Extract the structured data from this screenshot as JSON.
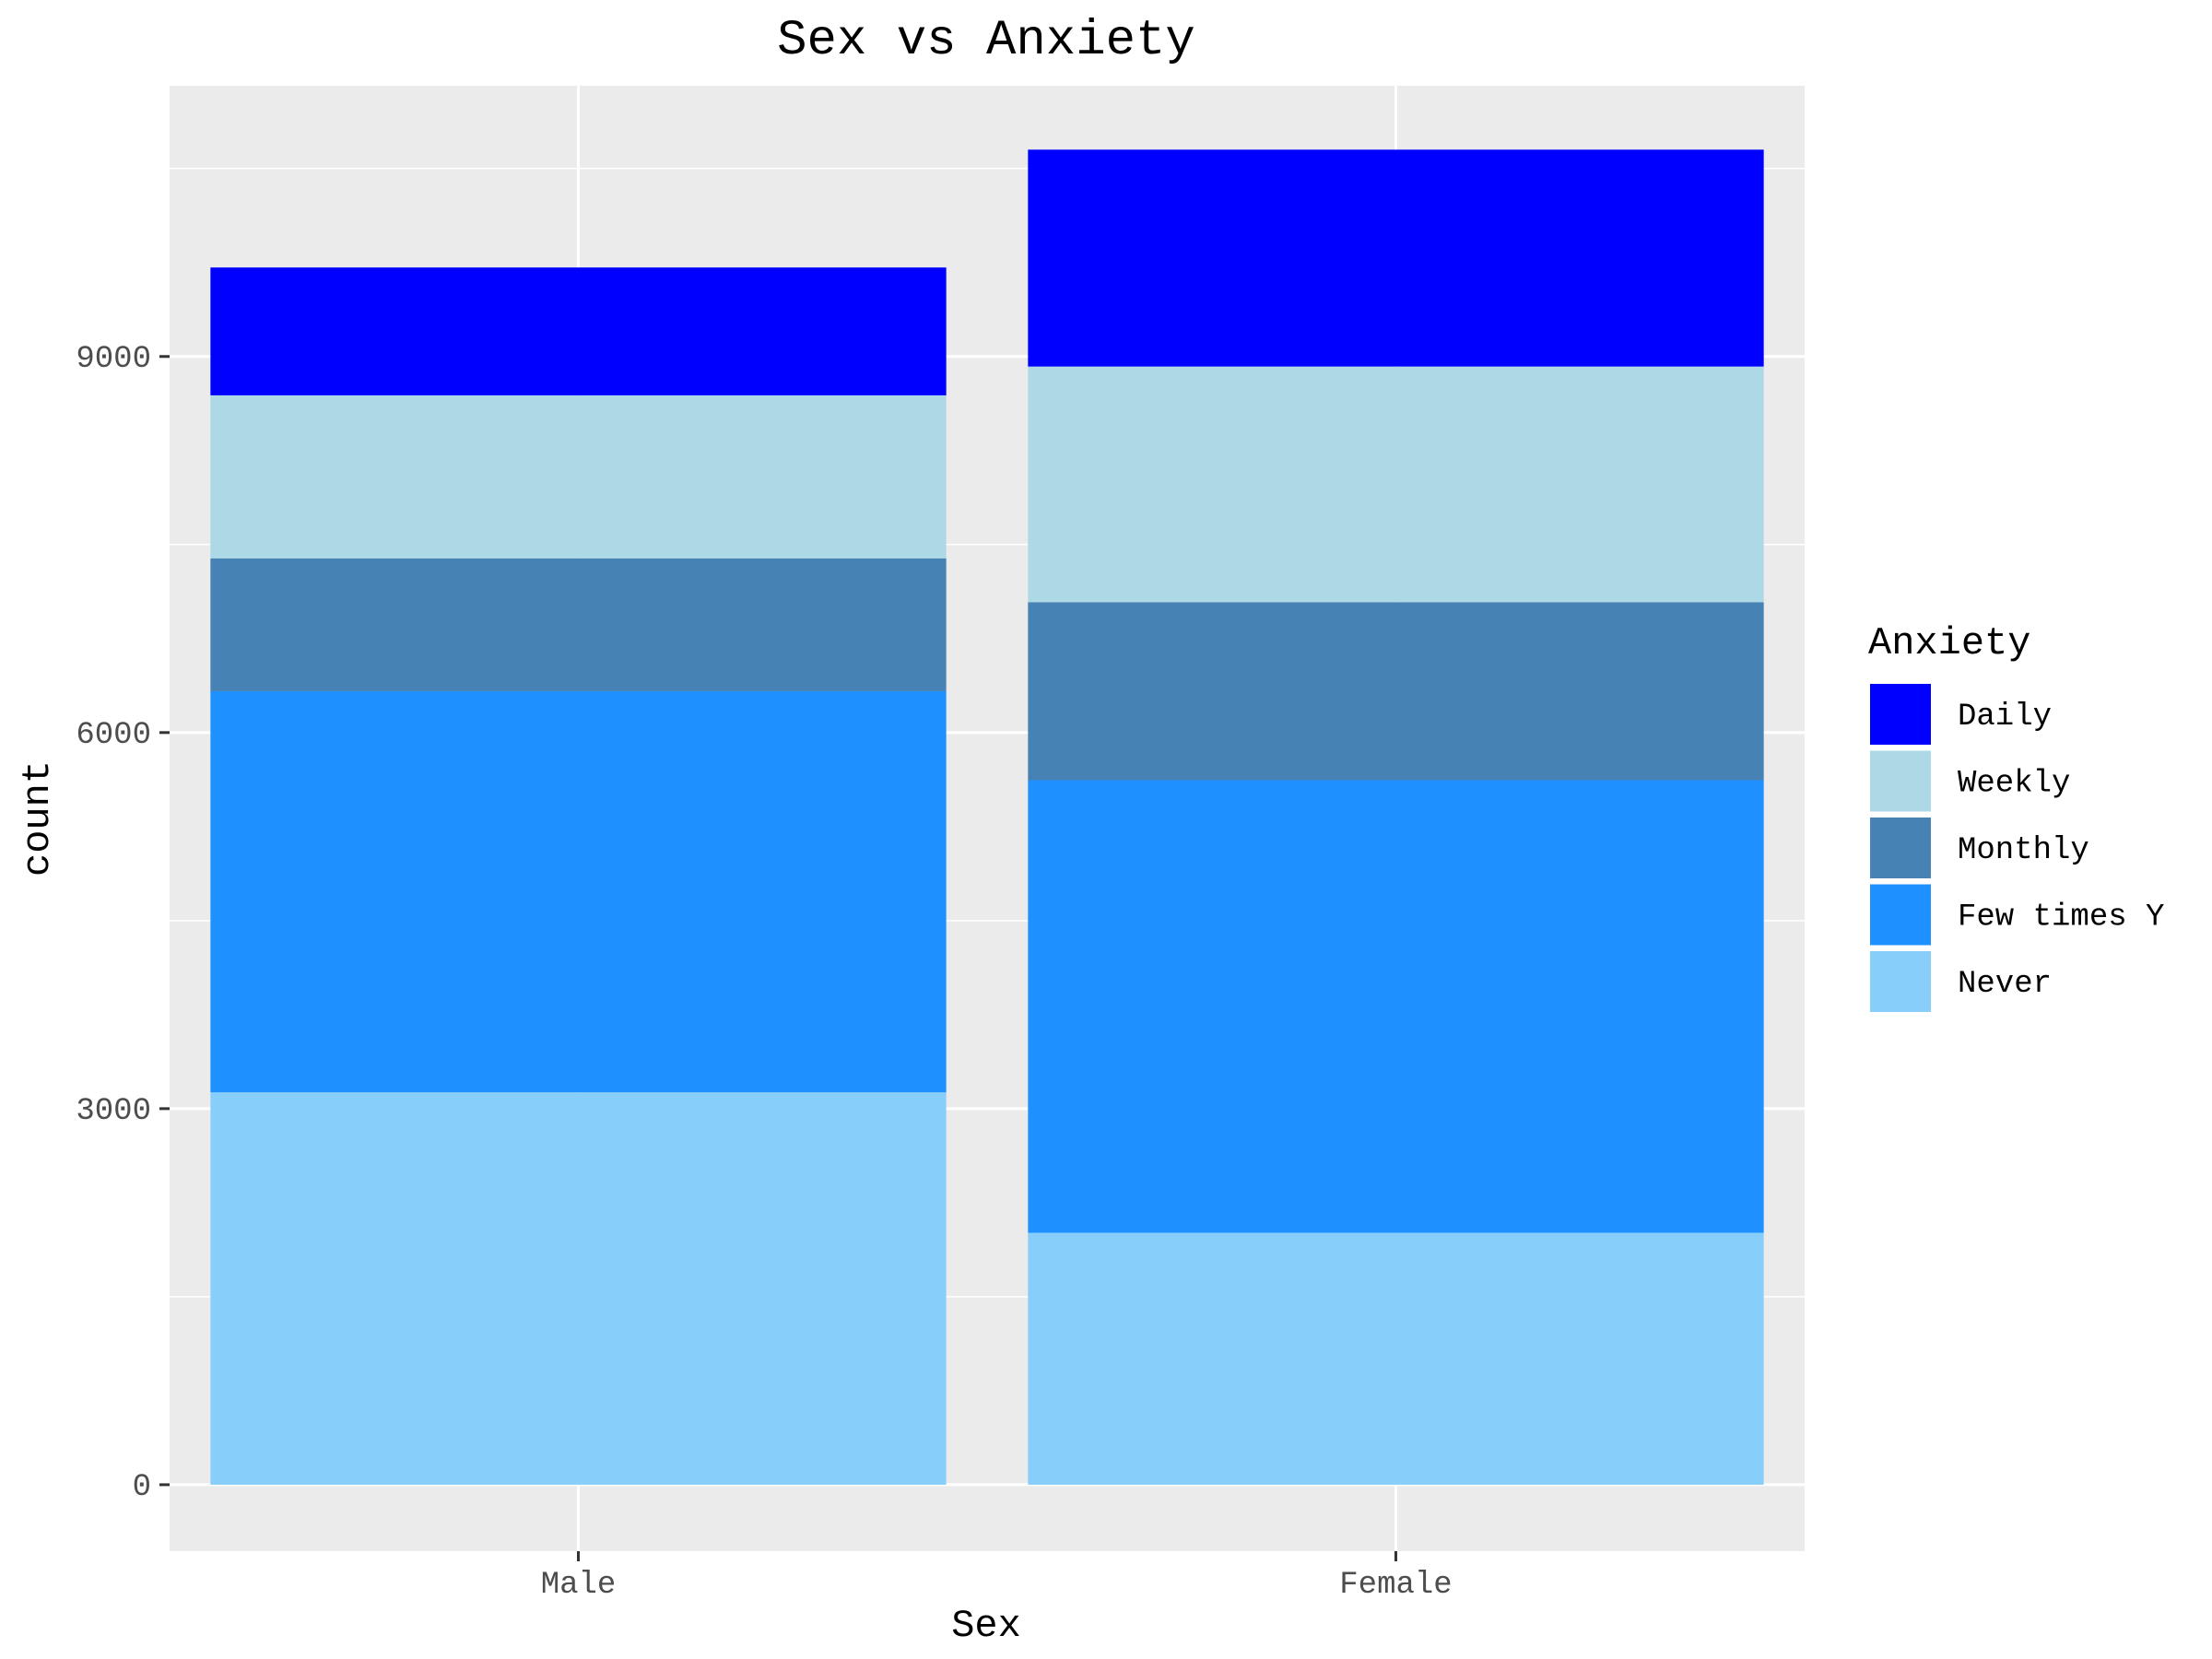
{
  "chart_data": {
    "type": "bar",
    "stacked": true,
    "title": "Sex vs Anxiety",
    "xlabel": "Sex",
    "ylabel": "count",
    "categories": [
      "Male",
      "Female"
    ],
    "ylim": [
      -530,
      11160
    ],
    "yticks": [
      0,
      3000,
      6000,
      9000
    ],
    "grid": true,
    "legend_title": "Anxiety",
    "legend_position": "right",
    "series": [
      {
        "name": "Never",
        "color": "#87CEFA",
        "values": [
          3130,
          2010
        ]
      },
      {
        "name": "Few times Y",
        "color": "#1E90FF",
        "values": [
          3200,
          3610
        ]
      },
      {
        "name": "Monthly",
        "color": "#4682B4",
        "values": [
          1060,
          1420
        ]
      },
      {
        "name": "Weekly",
        "color": "#ADD8E6",
        "values": [
          1300,
          1880
        ]
      },
      {
        "name": "Daily",
        "color": "#0000FF",
        "values": [
          1020,
          1730
        ]
      }
    ],
    "legend_order": [
      "Daily",
      "Weekly",
      "Monthly",
      "Few times Y",
      "Never"
    ]
  }
}
